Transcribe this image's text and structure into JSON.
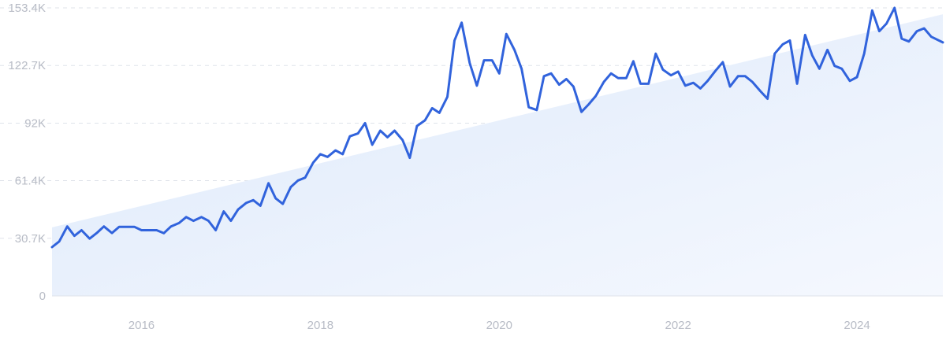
{
  "chart_data": {
    "type": "line",
    "title": "",
    "xlabel": "",
    "ylabel": "",
    "ylim": [
      0,
      153400
    ],
    "xlim": [
      2015.0,
      2024.96
    ],
    "grid": true,
    "legend": "none",
    "y_ticks": [
      {
        "value": 0,
        "label": "0"
      },
      {
        "value": 30700,
        "label": "30.7K"
      },
      {
        "value": 61400,
        "label": "61.4K"
      },
      {
        "value": 92000,
        "label": "92K"
      },
      {
        "value": 122700,
        "label": "122.7K"
      },
      {
        "value": 153400,
        "label": "153.4K"
      }
    ],
    "x_ticks": [
      {
        "value": 2016,
        "label": "2016"
      },
      {
        "value": 2018,
        "label": "2018"
      },
      {
        "value": 2020,
        "label": "2020"
      },
      {
        "value": 2022,
        "label": "2022"
      },
      {
        "value": 2024,
        "label": "2024"
      }
    ],
    "trend": {
      "start": [
        2015.0,
        36500
      ],
      "end": [
        2024.96,
        150000
      ]
    },
    "colors": {
      "line": "#3163dc",
      "fill": "#e6effc"
    },
    "series": [
      {
        "x": [
          2015.0,
          2015.08,
          2015.17,
          2015.25,
          2015.33,
          2015.42,
          2015.5,
          2015.58,
          2015.67,
          2015.75,
          2015.83,
          2015.92,
          2016.0,
          2016.08,
          2016.17,
          2016.25,
          2016.33,
          2016.42,
          2016.5,
          2016.58,
          2016.67,
          2016.75,
          2016.83,
          2016.92,
          2017.0,
          2017.08,
          2017.17,
          2017.25,
          2017.33,
          2017.42,
          2017.5,
          2017.58,
          2017.67,
          2017.75,
          2017.83,
          2017.92,
          2018.0,
          2018.08,
          2018.17,
          2018.25,
          2018.33,
          2018.42,
          2018.5,
          2018.58,
          2018.67,
          2018.75,
          2018.83,
          2018.92,
          2019.0,
          2019.08,
          2019.17,
          2019.25,
          2019.33,
          2019.42,
          2019.5,
          2019.58,
          2019.67,
          2019.75,
          2019.83,
          2019.92,
          2020.0,
          2020.08,
          2020.17,
          2020.25,
          2020.33,
          2020.42,
          2020.5,
          2020.58,
          2020.67,
          2020.75,
          2020.83,
          2020.92,
          2021.0,
          2021.08,
          2021.17,
          2021.25,
          2021.33,
          2021.42,
          2021.5,
          2021.58,
          2021.67,
          2021.75,
          2021.83,
          2021.92,
          2022.0,
          2022.08,
          2022.17,
          2022.25,
          2022.33,
          2022.42,
          2022.5,
          2022.58,
          2022.67,
          2022.75,
          2022.83,
          2022.92,
          2023.0,
          2023.08,
          2023.17,
          2023.25,
          2023.33,
          2023.42,
          2023.5,
          2023.58,
          2023.67,
          2023.75,
          2023.83,
          2023.92,
          2024.0,
          2024.08,
          2024.17,
          2024.25,
          2024.33,
          2024.42,
          2024.5,
          2024.58,
          2024.67,
          2024.75,
          2024.83,
          2024.96
        ],
        "values": [
          26000,
          29000,
          37000,
          32000,
          35000,
          30500,
          33500,
          37000,
          33500,
          36800,
          36800,
          36800,
          35000,
          35000,
          35000,
          33400,
          37000,
          38800,
          42000,
          40000,
          42000,
          40000,
          35000,
          45000,
          40000,
          46000,
          49500,
          51000,
          48000,
          60000,
          52000,
          49000,
          58000,
          61500,
          63000,
          71000,
          75500,
          74000,
          77500,
          75500,
          85000,
          86500,
          92000,
          80500,
          88000,
          84500,
          88000,
          83000,
          73500,
          90500,
          93500,
          100000,
          97500,
          106000,
          136000,
          145500,
          124000,
          112000,
          125500,
          125500,
          118500,
          139500,
          131000,
          121000,
          100500,
          99000,
          117000,
          118500,
          112500,
          115500,
          111500,
          98000,
          102000,
          106500,
          114000,
          118500,
          116000,
          116000,
          125000,
          113000,
          113000,
          129000,
          120500,
          117500,
          119500,
          112000,
          113500,
          110500,
          114500,
          120000,
          124500,
          111500,
          117000,
          117000,
          114000,
          109000,
          105000,
          129000,
          134000,
          136000,
          113000,
          139000,
          128000,
          121000,
          131000,
          122500,
          121000,
          114500,
          116500,
          129000,
          152000,
          141000,
          145000,
          153400,
          137000,
          135500,
          141000,
          142500,
          138000,
          135000
        ]
      }
    ]
  }
}
